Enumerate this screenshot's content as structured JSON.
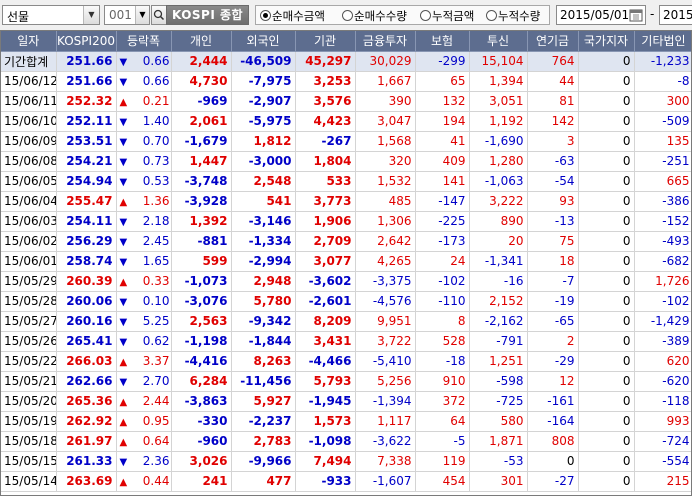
{
  "toolbar": {
    "market": "선물",
    "code": "001",
    "name": "KOSPI 종합",
    "radios": [
      "순매수금액",
      "순매수수량",
      "누적금액",
      "누적수량"
    ],
    "selected_radio": 0,
    "date_from": "2015/05/01",
    "dash": "-",
    "date_to": "2015/0"
  },
  "columns": [
    "일자",
    "KOSPI200",
    "등락폭",
    "개인",
    "외국인",
    "기관",
    "금융투자",
    "보험",
    "투신",
    "연기금",
    "국가지자",
    "기타법인"
  ],
  "colors": {
    "up": "#e00000",
    "down": "#0000c8",
    "header": "#5d6d8f"
  },
  "total": {
    "date": "기간합계",
    "idx": "251.66",
    "dir": "down",
    "chg": "0.66",
    "vals": [
      "2,444",
      "-46,509",
      "45,297",
      "30,029",
      "-299",
      "15,104",
      "764",
      "0",
      "-1,233"
    ]
  },
  "rows": [
    {
      "date": "15/06/12",
      "idx": "251.66",
      "dir": "down",
      "chg": "0.66",
      "vals": [
        "4,730",
        "-7,975",
        "3,253",
        "1,667",
        "65",
        "1,394",
        "44",
        "0",
        "-8"
      ]
    },
    {
      "date": "15/06/11",
      "idx": "252.32",
      "dir": "up",
      "chg": "0.21",
      "vals": [
        "-969",
        "-2,907",
        "3,576",
        "390",
        "132",
        "3,051",
        "81",
        "0",
        "300"
      ]
    },
    {
      "date": "15/06/10",
      "idx": "252.11",
      "dir": "down",
      "chg": "1.40",
      "vals": [
        "2,061",
        "-5,975",
        "4,423",
        "3,047",
        "194",
        "1,192",
        "142",
        "0",
        "-509"
      ]
    },
    {
      "date": "15/06/09",
      "idx": "253.51",
      "dir": "down",
      "chg": "0.70",
      "vals": [
        "-1,679",
        "1,812",
        "-267",
        "1,568",
        "41",
        "-1,690",
        "3",
        "0",
        "135"
      ]
    },
    {
      "date": "15/06/08",
      "idx": "254.21",
      "dir": "down",
      "chg": "0.73",
      "vals": [
        "1,447",
        "-3,000",
        "1,804",
        "320",
        "409",
        "1,280",
        "-63",
        "0",
        "-251"
      ]
    },
    {
      "date": "15/06/05",
      "idx": "254.94",
      "dir": "down",
      "chg": "0.53",
      "vals": [
        "-3,748",
        "2,548",
        "533",
        "1,532",
        "141",
        "-1,063",
        "-54",
        "0",
        "665"
      ]
    },
    {
      "date": "15/06/04",
      "idx": "255.47",
      "dir": "up",
      "chg": "1.36",
      "vals": [
        "-3,928",
        "541",
        "3,773",
        "485",
        "-147",
        "3,222",
        "93",
        "0",
        "-386"
      ]
    },
    {
      "date": "15/06/03",
      "idx": "254.11",
      "dir": "down",
      "chg": "2.18",
      "vals": [
        "1,392",
        "-3,146",
        "1,906",
        "1,306",
        "-225",
        "890",
        "-13",
        "0",
        "-152"
      ]
    },
    {
      "date": "15/06/02",
      "idx": "256.29",
      "dir": "down",
      "chg": "2.45",
      "vals": [
        "-881",
        "-1,334",
        "2,709",
        "2,642",
        "-173",
        "20",
        "75",
        "0",
        "-493"
      ]
    },
    {
      "date": "15/06/01",
      "idx": "258.74",
      "dir": "down",
      "chg": "1.65",
      "vals": [
        "599",
        "-2,994",
        "3,077",
        "4,265",
        "24",
        "-1,341",
        "18",
        "0",
        "-682"
      ]
    },
    {
      "date": "15/05/29",
      "idx": "260.39",
      "dir": "up",
      "chg": "0.33",
      "vals": [
        "-1,073",
        "2,948",
        "-3,602",
        "-3,375",
        "-102",
        "-16",
        "-7",
        "0",
        "1,726"
      ]
    },
    {
      "date": "15/05/28",
      "idx": "260.06",
      "dir": "down",
      "chg": "0.10",
      "vals": [
        "-3,076",
        "5,780",
        "-2,601",
        "-4,576",
        "-110",
        "2,152",
        "-19",
        "0",
        "-102"
      ]
    },
    {
      "date": "15/05/27",
      "idx": "260.16",
      "dir": "down",
      "chg": "5.25",
      "vals": [
        "2,563",
        "-9,342",
        "8,209",
        "9,951",
        "8",
        "-2,162",
        "-65",
        "0",
        "-1,429"
      ]
    },
    {
      "date": "15/05/26",
      "idx": "265.41",
      "dir": "down",
      "chg": "0.62",
      "vals": [
        "-1,198",
        "-1,844",
        "3,431",
        "3,722",
        "528",
        "-791",
        "2",
        "0",
        "-389"
      ]
    },
    {
      "date": "15/05/22",
      "idx": "266.03",
      "dir": "up",
      "chg": "3.37",
      "vals": [
        "-4,416",
        "8,263",
        "-4,466",
        "-5,410",
        "-18",
        "1,251",
        "-29",
        "0",
        "620"
      ]
    },
    {
      "date": "15/05/21",
      "idx": "262.66",
      "dir": "down",
      "chg": "2.70",
      "vals": [
        "6,284",
        "-11,456",
        "5,793",
        "5,256",
        "910",
        "-598",
        "12",
        "0",
        "-620"
      ]
    },
    {
      "date": "15/05/20",
      "idx": "265.36",
      "dir": "up",
      "chg": "2.44",
      "vals": [
        "-3,863",
        "5,927",
        "-1,945",
        "-1,394",
        "372",
        "-725",
        "-161",
        "0",
        "-118"
      ]
    },
    {
      "date": "15/05/19",
      "idx": "262.92",
      "dir": "up",
      "chg": "0.95",
      "vals": [
        "-330",
        "-2,237",
        "1,573",
        "1,117",
        "64",
        "580",
        "-164",
        "0",
        "993"
      ]
    },
    {
      "date": "15/05/18",
      "idx": "261.97",
      "dir": "up",
      "chg": "0.64",
      "vals": [
        "-960",
        "2,783",
        "-1,098",
        "-3,622",
        "-5",
        "1,871",
        "808",
        "0",
        "-724"
      ]
    },
    {
      "date": "15/05/15",
      "idx": "261.33",
      "dir": "down",
      "chg": "2.36",
      "vals": [
        "3,026",
        "-9,966",
        "7,494",
        "7,338",
        "119",
        "-53",
        "0",
        "0",
        "-554"
      ]
    },
    {
      "date": "15/05/14",
      "idx": "263.69",
      "dir": "up",
      "chg": "0.44",
      "vals": [
        "241",
        "477",
        "-933",
        "-1,607",
        "454",
        "301",
        "-27",
        "0",
        "215"
      ]
    }
  ]
}
